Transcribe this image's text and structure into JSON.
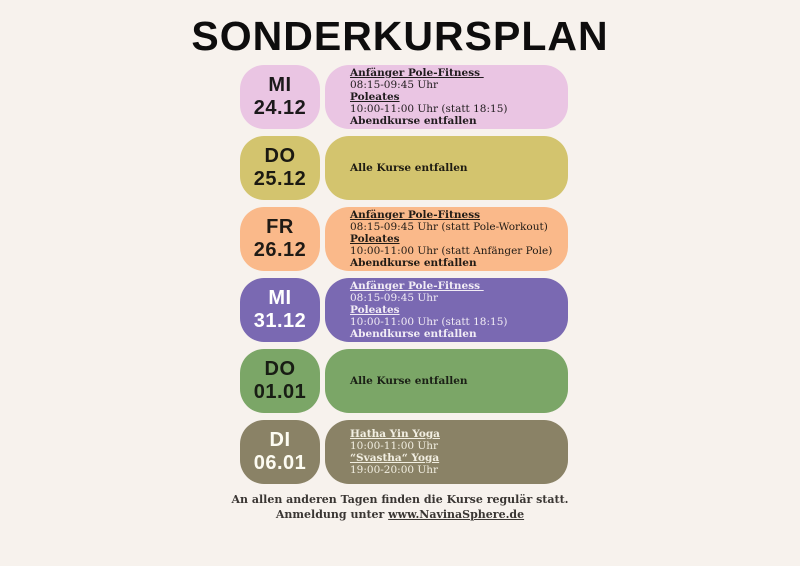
{
  "title": "SONDERKURSPLAN",
  "page_background": "#f7f2ed",
  "rows": [
    {
      "day": "MI",
      "date": "24.12",
      "colors": {
        "bg": "#eac5e3",
        "date_fg": "#1c191b",
        "text_fg": "#201c1e"
      },
      "lines": [
        {
          "text": "Anfänger Pole-Fitness ",
          "style": "head"
        },
        {
          "text": "08:15-09:45 Uhr",
          "style": "normal"
        },
        {
          "text": "Poleates",
          "style": "head"
        },
        {
          "text": "10:00-11:00 Uhr (statt 18:15)",
          "style": "normal"
        },
        {
          "text": "Abendkurse entfallen",
          "style": "bold"
        }
      ]
    },
    {
      "day": "DO",
      "date": "25.12",
      "colors": {
        "bg": "#d3c46e",
        "date_fg": "#1b1912",
        "text_fg": "#1f1c13"
      },
      "lines": [
        {
          "text": "Alle Kurse entfallen",
          "style": "bold"
        }
      ]
    },
    {
      "day": "FR",
      "date": "26.12",
      "colors": {
        "bg": "#fab98a",
        "date_fg": "#1f1a15",
        "text_fg": "#221c16"
      },
      "lines": [
        {
          "text": "Anfänger Pole-Fitness",
          "style": "head"
        },
        {
          "text": "08:15-09:45 Uhr (statt Pole-Workout)",
          "style": "normal"
        },
        {
          "text": "Poleates",
          "style": "head"
        },
        {
          "text": "10:00-11:00 Uhr (statt Anfänger Pole)",
          "style": "normal"
        },
        {
          "text": "Abendkurse entfallen",
          "style": "bold"
        }
      ]
    },
    {
      "day": "MI",
      "date": "31.12",
      "colors": {
        "bg": "#7a69b2",
        "date_fg": "#ffffff",
        "text_fg": "#f1ecf5"
      },
      "lines": [
        {
          "text": "Anfänger Pole-Fitness ",
          "style": "head"
        },
        {
          "text": "08:15-09:45 Uhr",
          "style": "normal"
        },
        {
          "text": "Poleates",
          "style": "head"
        },
        {
          "text": "10:00-11:00 Uhr (statt 18:15)",
          "style": "normal"
        },
        {
          "text": "Abendkurse entfallen",
          "style": "bold"
        }
      ]
    },
    {
      "day": "DO",
      "date": "01.01",
      "colors": {
        "bg": "#7ba667",
        "date_fg": "#181d14",
        "text_fg": "#1b2016"
      },
      "lines": [
        {
          "text": "Alle Kurse entfallen",
          "style": "bold"
        }
      ]
    },
    {
      "day": "DI",
      "date": "06.01",
      "colors": {
        "bg": "#8a8266",
        "date_fg": "#fdfcf2",
        "text_fg": "#f2efe2"
      },
      "lines": [
        {
          "text": "Hatha Yin Yoga",
          "style": "head"
        },
        {
          "text": "10:00-11:00 Uhr",
          "style": "normal"
        },
        {
          "text": "“Svastha“ Yoga",
          "style": "head"
        },
        {
          "text": "19:00-20:00 Uhr",
          "style": "normal"
        }
      ]
    }
  ],
  "footer": {
    "line1": "An allen anderen Tagen finden die Kurse regulär statt.",
    "line2_prefix": "Anmeldung unter ",
    "link": "www.NavinaSphere.de"
  }
}
